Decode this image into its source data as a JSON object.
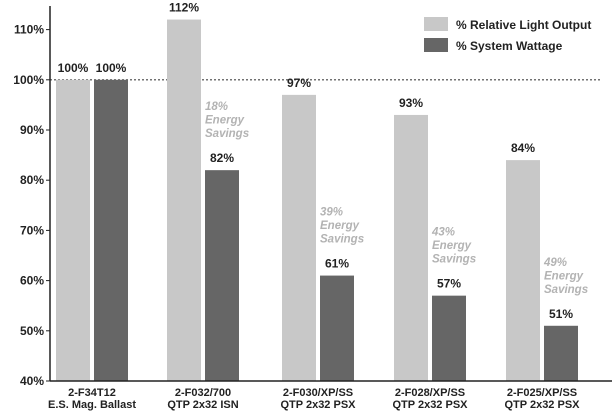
{
  "colors": {
    "light_output": "#c8c8c8",
    "system_wattage": "#666666",
    "axis": "#222222",
    "reference_line": "#444444",
    "savings_text": "#b3b3b3"
  },
  "chart_data": {
    "type": "bar",
    "ylim": [
      40,
      112
    ],
    "yticks": [
      {
        "value": 40,
        "label": "40%"
      },
      {
        "value": 50,
        "label": "50%"
      },
      {
        "value": 60,
        "label": "60%"
      },
      {
        "value": 70,
        "label": "70%"
      },
      {
        "value": 80,
        "label": "80%"
      },
      {
        "value": 90,
        "label": "90%"
      },
      {
        "value": 100,
        "label": "100%"
      },
      {
        "value": 110,
        "label": "110%"
      }
    ],
    "reference_line": 100,
    "categories": [
      {
        "line1": "2-F34T12",
        "line2": "E.S. Mag. Ballast"
      },
      {
        "line1": "2-F032/700",
        "line2": "QTP 2x32 ISN"
      },
      {
        "line1": "2-F030/XP/SS",
        "line2": "QTP 2x32 PSX"
      },
      {
        "line1": "2-F028/XP/SS",
        "line2": "QTP 2x32 PSX"
      },
      {
        "line1": "2-F025/XP/SS",
        "line2": "QTP 2x32 PSX"
      }
    ],
    "series": [
      {
        "name": "% Relative Light Output",
        "values": [
          100,
          112,
          97,
          93,
          84
        ],
        "labels": [
          "100%",
          "112%",
          "97%",
          "93%",
          "84%"
        ]
      },
      {
        "name": "% System Wattage",
        "values": [
          100,
          82,
          61,
          57,
          51
        ],
        "labels": [
          "100%",
          "82%",
          "61%",
          "57%",
          "51%"
        ]
      }
    ],
    "savings": [
      null,
      {
        "line1": "18%",
        "line2": "Energy",
        "line3": "Savings"
      },
      {
        "line1": "39%",
        "line2": "Energy",
        "line3": "Savings"
      },
      {
        "line1": "43%",
        "line2": "Energy",
        "line3": "Savings"
      },
      {
        "line1": "49%",
        "line2": "Energy",
        "line3": "Savings"
      }
    ]
  }
}
